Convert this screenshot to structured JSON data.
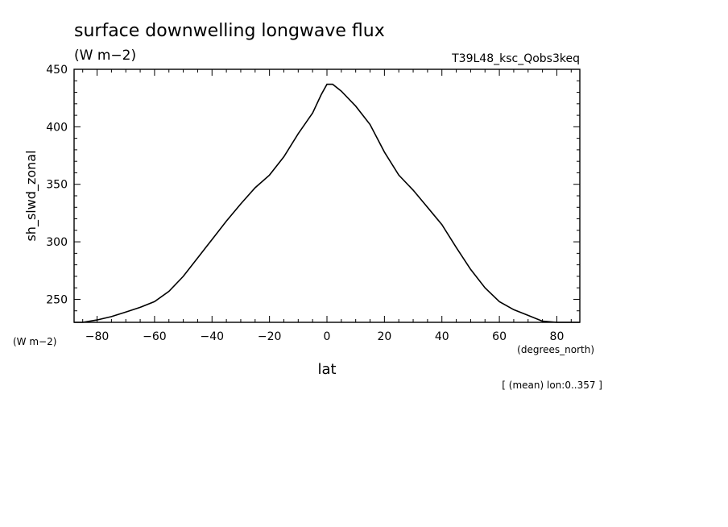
{
  "chart_data": {
    "type": "line",
    "title": "surface downwelling longwave flux",
    "title_units": "(W m−2)",
    "run_label": "T39L48_ksc_Qobs3keq",
    "ylabel": "sh_slwd_zonal",
    "y_units": "(W m−2)",
    "xlabel": "lat",
    "x_units": "(degrees_north)",
    "note": "[ (mean) lon:0..357 ]",
    "xlim": [
      -88,
      88
    ],
    "ylim": [
      230,
      450
    ],
    "xticks": [
      -80,
      -60,
      -40,
      -20,
      0,
      20,
      40,
      60,
      80
    ],
    "xtick_labels": [
      "−80",
      "−60",
      "−40",
      "−20",
      "0",
      "20",
      "40",
      "60",
      "80"
    ],
    "yticks": [
      250,
      300,
      350,
      400,
      450
    ],
    "ytick_labels": [
      "250",
      "300",
      "350",
      "400",
      "450"
    ],
    "grid": false,
    "series": [
      {
        "color": "#000000",
        "x": [
          -88,
          -85,
          -80,
          -75,
          -70,
          -65,
          -60,
          -55,
          -50,
          -45,
          -40,
          -35,
          -30,
          -25,
          -20,
          -15,
          -10,
          -5,
          -2,
          0,
          2,
          5,
          10,
          15,
          20,
          25,
          30,
          35,
          40,
          45,
          50,
          55,
          60,
          65,
          70,
          75,
          80,
          85,
          88
        ],
        "y": [
          230,
          230,
          232,
          235,
          239,
          243,
          248,
          257,
          270,
          286,
          302,
          318,
          333,
          347,
          358,
          374,
          394,
          412,
          428,
          437,
          437,
          431,
          418,
          402,
          378,
          358,
          345,
          330,
          315,
          295,
          276,
          260,
          248,
          241,
          236,
          231,
          230,
          230,
          230
        ]
      }
    ]
  }
}
